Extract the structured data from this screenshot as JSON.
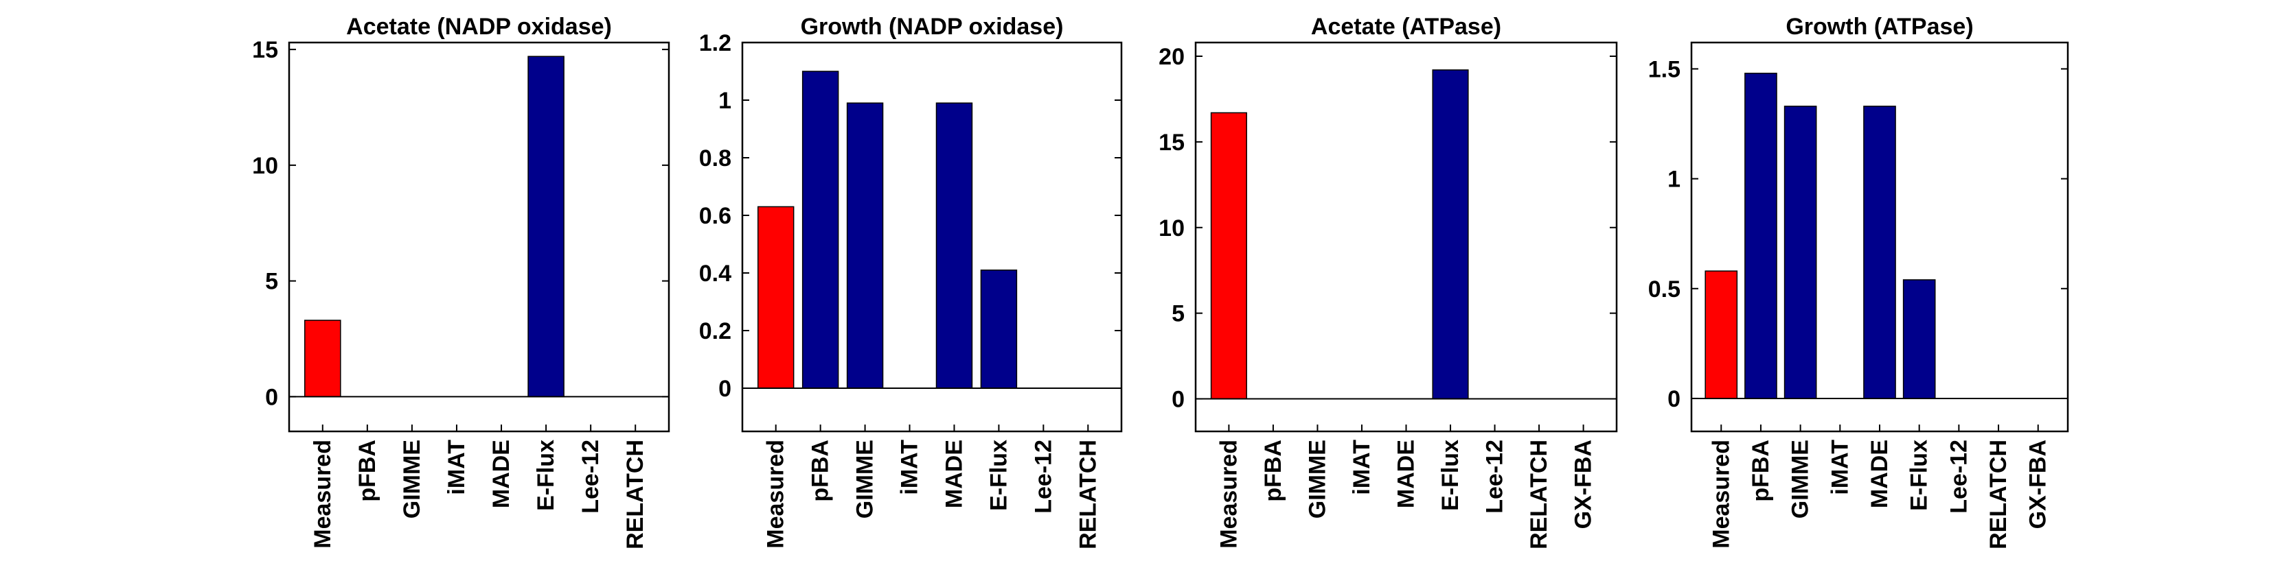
{
  "chart_data": [
    {
      "type": "bar",
      "title": "Acetate (NADP oxidase)",
      "categories": [
        "Measured",
        "pFBA",
        "GIMME",
        "iMAT",
        "MADE",
        "E-Flux",
        "Lee-12",
        "RELATCH"
      ],
      "values": [
        3.3,
        0,
        0,
        0,
        0,
        14.7,
        0,
        0
      ],
      "colors": [
        "#ff0000",
        "#00008b",
        "#00008b",
        "#00008b",
        "#00008b",
        "#00008b",
        "#00008b",
        "#00008b"
      ],
      "ylim": [
        -1.5,
        15.3
      ],
      "yticks": [
        0,
        5,
        10,
        15
      ],
      "yticklabels": [
        "0",
        "5",
        "10",
        "15"
      ],
      "xlabel": "",
      "ylabel": ""
    },
    {
      "type": "bar",
      "title": "Growth (NADP oxidase)",
      "categories": [
        "Measured",
        "pFBA",
        "GIMME",
        "iMAT",
        "MADE",
        "E-Flux",
        "Lee-12",
        "RELATCH"
      ],
      "values": [
        0.63,
        1.1,
        0.99,
        0,
        0.99,
        0.41,
        0,
        0
      ],
      "colors": [
        "#ff0000",
        "#00008b",
        "#00008b",
        "#00008b",
        "#00008b",
        "#00008b",
        "#00008b",
        "#00008b"
      ],
      "ylim": [
        -0.15,
        1.2
      ],
      "yticks": [
        0,
        0.2,
        0.4,
        0.6,
        0.8,
        1,
        1.2
      ],
      "yticklabels": [
        "0",
        "0.2",
        "0.4",
        "0.6",
        "0.8",
        "1",
        "1.2"
      ],
      "xlabel": "",
      "ylabel": ""
    },
    {
      "type": "bar",
      "title": "Acetate (ATPase)",
      "categories": [
        "Measured",
        "pFBA",
        "GIMME",
        "iMAT",
        "MADE",
        "E-Flux",
        "Lee-12",
        "RELATCH",
        "GX-FBA"
      ],
      "values": [
        16.7,
        0,
        0,
        0,
        0,
        19.2,
        0,
        0,
        0
      ],
      "colors": [
        "#ff0000",
        "#00008b",
        "#00008b",
        "#00008b",
        "#00008b",
        "#00008b",
        "#00008b",
        "#00008b",
        "#00008b"
      ],
      "ylim": [
        -1.9,
        20.8
      ],
      "yticks": [
        0,
        5,
        10,
        15,
        20
      ],
      "yticklabels": [
        "0",
        "5",
        "10",
        "15",
        "20"
      ],
      "xlabel": "",
      "ylabel": ""
    },
    {
      "type": "bar",
      "title": "Growth (ATPase)",
      "categories": [
        "Measured",
        "pFBA",
        "GIMME",
        "iMAT",
        "MADE",
        "E-Flux",
        "Lee-12",
        "RELATCH",
        "GX-FBA"
      ],
      "values": [
        0.58,
        1.48,
        1.33,
        0,
        1.33,
        0.54,
        0,
        0,
        0
      ],
      "colors": [
        "#ff0000",
        "#00008b",
        "#00008b",
        "#00008b",
        "#00008b",
        "#00008b",
        "#00008b",
        "#00008b",
        "#00008b"
      ],
      "ylim": [
        -0.15,
        1.62
      ],
      "yticks": [
        0,
        0.5,
        1,
        1.5
      ],
      "yticklabels": [
        "0",
        "0.5",
        "1",
        "1.5"
      ],
      "xlabel": "",
      "ylabel": ""
    }
  ]
}
